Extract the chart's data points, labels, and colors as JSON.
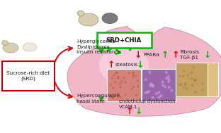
{
  "bg_color": "#ffffff",
  "liver_color": "#f2b8ca",
  "liver_highlight": "#fde0ea",
  "srd_box_color": "#cc0000",
  "srd_box_text": "Sucrose-rich diet\n(SRD)",
  "chia_box_color": "#00bb00",
  "chia_box_text": "SRD+CHIA",
  "labels": {
    "hyperglycemia": "Hyperglycemia\nDyslipidemia\nInsulin resistance",
    "hypercoagulable": "Hypercoagulable\nbasal state",
    "steatosis": "steatosis",
    "ppar": "PPARα",
    "fibrosis": "Fibrosis\nTGF-β1",
    "endothelial": "endothelial dysfunction\nVCAM-1"
  },
  "arrow_red": "#dd0000",
  "arrow_green": "#00bb00",
  "font_size": 5.2
}
